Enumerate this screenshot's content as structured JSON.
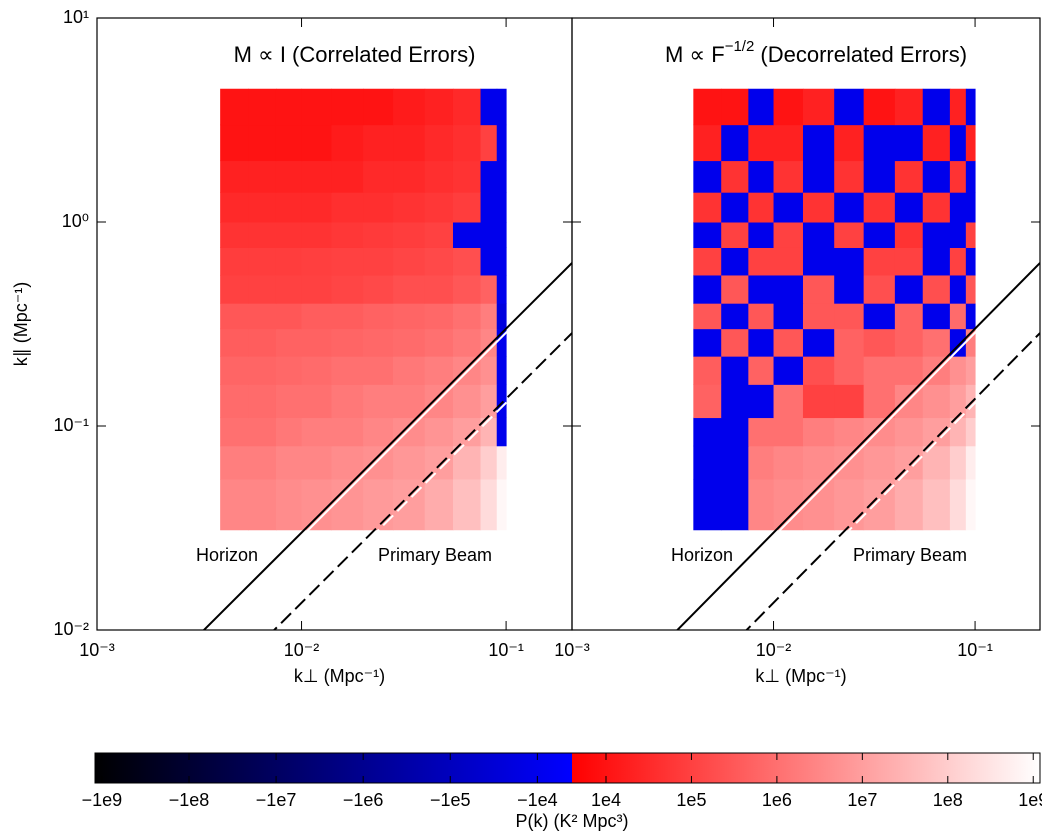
{
  "chart_data": [
    {
      "type": "heatmap",
      "title": "M ∝ I (Correlated Errors)",
      "xlabel": "k⊥ (Mpc⁻¹)",
      "ylabel": "k∥ (Mpc⁻¹)",
      "xscale": "log",
      "yscale": "log",
      "xlim": [
        0.001,
        0.21
      ],
      "ylim": [
        0.01,
        10
      ],
      "xticks": [
        {
          "value": 0.001,
          "label": "10⁻³"
        },
        {
          "value": 0.01,
          "label": "10⁻²"
        },
        {
          "value": 0.1,
          "label": "10⁻¹"
        }
      ],
      "yticks": [
        {
          "value": 0.01,
          "label": "10⁻²"
        },
        {
          "value": 0.1,
          "label": "10⁻¹"
        },
        {
          "value": 1,
          "label": "10⁰"
        },
        {
          "value": 10,
          "label": "10¹"
        }
      ],
      "x_edges": [
        0.004,
        0.0055,
        0.0075,
        0.01,
        0.014,
        0.02,
        0.028,
        0.04,
        0.055,
        0.075,
        0.09,
        0.1
      ],
      "y_edges": [
        0.031,
        0.055,
        0.08,
        0.11,
        0.16,
        0.22,
        0.3,
        0.4,
        0.55,
        0.75,
        1.0,
        1.4,
        2.0,
        3.0,
        4.5
      ],
      "z": [
        [
          3000000.0,
          3000000.0,
          4000000.0,
          5000000.0,
          6000000.0,
          8000000.0,
          10000000.0,
          20000000.0,
          50000000.0,
          200000000.0,
          800000000.0
        ],
        [
          2000000.0,
          2000000.0,
          3000000.0,
          3000000.0,
          4000000.0,
          5000000.0,
          7000000.0,
          10000000.0,
          30000000.0,
          100000000.0,
          500000000.0
        ],
        [
          1000000.0,
          1000000.0,
          1500000.0,
          2000000.0,
          2000000.0,
          3000000.0,
          4000000.0,
          6000000.0,
          10000000.0,
          30000000.0,
          -10000.0
        ],
        [
          800000.0,
          800000.0,
          1000000.0,
          1000000.0,
          1500000.0,
          2000000.0,
          2000000.0,
          3000000.0,
          5000000.0,
          10000000.0,
          -10000.0
        ],
        [
          600000.0,
          600000.0,
          700000.0,
          800000.0,
          1000000.0,
          1000000.0,
          1500000.0,
          2000000.0,
          3000000.0,
          5000000.0,
          -10000.0
        ],
        [
          400000.0,
          400000.0,
          500000.0,
          500000.0,
          600000.0,
          700000.0,
          800000.0,
          1000000.0,
          1500000.0,
          3000000.0,
          -10000.0
        ],
        [
          300000.0,
          300000.0,
          300000.0,
          400000.0,
          400000.0,
          500000.0,
          600000.0,
          700000.0,
          1000000.0,
          2000000.0,
          -20000.0
        ],
        [
          100000.0,
          100000.0,
          100000.0,
          100000.0,
          120000.0,
          150000.0,
          200000.0,
          200000.0,
          300000.0,
          500000.0,
          -10000.0
        ],
        [
          80000.0,
          80000.0,
          80000.0,
          90000.0,
          100000.0,
          100000.0,
          120000.0,
          150000.0,
          200000.0,
          -10000.0,
          -10000.0
        ],
        [
          50000.0,
          50000.0,
          50000.0,
          50000.0,
          60000.0,
          70000.0,
          80000.0,
          100000.0,
          -10000.0,
          -10000.0,
          -10000.0
        ],
        [
          30000.0,
          30000.0,
          30000.0,
          30000.0,
          40000.0,
          40000.0,
          50000.0,
          60000.0,
          80000.0,
          -10000.0,
          -10000.0
        ],
        [
          20000.0,
          20000.0,
          20000.0,
          20000.0,
          20000.0,
          30000.0,
          30000.0,
          40000.0,
          50000.0,
          -10000.0,
          -10000.0
        ],
        [
          10000.0,
          10000.0,
          10000.0,
          10000.0,
          15000.0,
          20000.0,
          20000.0,
          30000.0,
          40000.0,
          100000.0,
          -10000.0
        ],
        [
          10000.0,
          10000.0,
          10000.0,
          10000.0,
          10000.0,
          10000.0,
          15000.0,
          20000.0,
          30000.0,
          -10000.0,
          -10000.0
        ]
      ],
      "lines": [
        {
          "label": "Horizon",
          "ratio": 3.0,
          "dash": false
        },
        {
          "label": "Primary Beam",
          "ratio": 1.36,
          "dash": true
        }
      ]
    },
    {
      "type": "heatmap",
      "title": "M ∝ F",
      "title_sup": "−1/2",
      "title_rest": " (Decorrelated Errors)",
      "xlabel": "k⊥ (Mpc⁻¹)",
      "xscale": "log",
      "yscale": "log",
      "xlim": [
        0.001,
        0.21
      ],
      "ylim": [
        0.01,
        10
      ],
      "xticks": [
        {
          "value": 0.001,
          "label": "10⁻³"
        },
        {
          "value": 0.01,
          "label": "10⁻²"
        },
        {
          "value": 0.1,
          "label": "10⁻¹"
        }
      ],
      "x_edges": [
        0.004,
        0.0055,
        0.0075,
        0.01,
        0.014,
        0.02,
        0.028,
        0.04,
        0.055,
        0.075,
        0.09,
        0.1
      ],
      "y_edges": [
        0.031,
        0.055,
        0.08,
        0.11,
        0.16,
        0.22,
        0.3,
        0.4,
        0.55,
        0.75,
        1.0,
        1.4,
        2.0,
        3.0,
        4.5
      ],
      "z": [
        [
          -10000.0,
          -10000.0,
          3000000.0,
          4000000.0,
          5000000.0,
          7000000.0,
          10000000.0,
          20000000.0,
          50000000.0,
          200000000.0,
          800000000.0
        ],
        [
          -10000.0,
          -10000.0,
          2000000.0,
          3000000.0,
          4000000.0,
          5000000.0,
          7000000.0,
          10000000.0,
          30000000.0,
          100000000.0,
          500000000.0
        ],
        [
          -10000.0,
          -10000.0,
          1000000.0,
          1000000.0,
          2000000.0,
          3000000.0,
          4000000.0,
          6000000.0,
          10000000.0,
          30000000.0,
          100000000.0
        ],
        [
          500000.0,
          -10000.0,
          -10000.0,
          1000000.0,
          100000.0,
          100000.0,
          1000000.0,
          3000000.0,
          5000000.0,
          10000000.0,
          30000000.0
        ],
        [
          400000.0,
          -10000.0,
          500000.0,
          -10000.0,
          200000.0,
          500000.0,
          1000000.0,
          1000000.0,
          2000000.0,
          5000000.0,
          10000000.0
        ],
        [
          -10000.0,
          300000.0,
          -10000.0,
          300000.0,
          -10000.0,
          500000.0,
          300000.0,
          500000.0,
          1000000.0,
          -10000.0,
          2000000.0
        ],
        [
          300000.0,
          -10000.0,
          300000.0,
          -10000.0,
          300000.0,
          300000.0,
          -10000.0,
          500000.0,
          -10000.0,
          800000.0,
          -10000.0
        ],
        [
          -10000.0,
          300000.0,
          -10000.0,
          -10000.0,
          300000.0,
          -10000.0,
          200000.0,
          -10000.0,
          200000.0,
          -10000.0,
          300000.0
        ],
        [
          100000.0,
          -10000.0,
          100000.0,
          100000.0,
          -10000.0,
          -10000.0,
          100000.0,
          100000.0,
          -10000.0,
          100000.0,
          -10000.0
        ],
        [
          -10000.0,
          100000.0,
          -10000.0,
          100000.0,
          -10000.0,
          100000.0,
          -10000.0,
          50000.0,
          -10000.0,
          -10000.0,
          100000.0
        ],
        [
          50000.0,
          -10000.0,
          50000.0,
          -10000.0,
          50000.0,
          -10000.0,
          50000.0,
          -10000.0,
          50000.0,
          -10000.0,
          -10000.0
        ],
        [
          -10000.0,
          50000.0,
          -10000.0,
          50000.0,
          -10000.0,
          50000.0,
          -10000.0,
          50000.0,
          -10000.0,
          50000.0,
          -10000.0
        ],
        [
          20000.0,
          -10000.0,
          20000.0,
          20000.0,
          -10000.0,
          20000.0,
          -10000.0,
          -10000.0,
          20000.0,
          -10000.0,
          20000.0
        ],
        [
          10000.0,
          10000.0,
          -10000.0,
          10000.0,
          20000.0,
          -10000.0,
          10000.0,
          20000.0,
          -10000.0,
          20000.0,
          -10000.0
        ]
      ],
      "lines": [
        {
          "label": "Horizon",
          "ratio": 3.0,
          "dash": false
        },
        {
          "label": "Primary Beam",
          "ratio": 1.36,
          "dash": true
        }
      ]
    }
  ],
  "colorbar": {
    "label": "P(k) (K² Mpc³)",
    "abs_lim": [
      4000,
      1200000000.0
    ],
    "pos_colors": [
      "#ff0000",
      "#ffffff"
    ],
    "neg_colors": [
      "#0000ff",
      "#000000"
    ],
    "ticks": [
      {
        "value": -1000000000.0,
        "label": "−1e9"
      },
      {
        "value": -100000000.0,
        "label": "−1e8"
      },
      {
        "value": -10000000.0,
        "label": "−1e7"
      },
      {
        "value": -1000000.0,
        "label": "−1e6"
      },
      {
        "value": -100000.0,
        "label": "−1e5"
      },
      {
        "value": -10000.0,
        "label": "−1e4"
      },
      {
        "value": 10000.0,
        "label": "1e4"
      },
      {
        "value": 100000.0,
        "label": "1e5"
      },
      {
        "value": 1000000.0,
        "label": "1e6"
      },
      {
        "value": 10000000.0,
        "label": "1e7"
      },
      {
        "value": 100000000.0,
        "label": "1e8"
      },
      {
        "value": 1000000000.0,
        "label": "1e9"
      }
    ]
  }
}
